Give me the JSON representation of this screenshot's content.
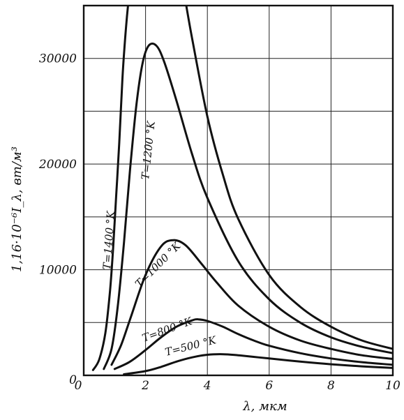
{
  "chart_data": {
    "type": "line",
    "xlabel": "λ, мкм",
    "ylabel": "1,16·10⁻⁶I_λ, вт/м³",
    "xlim": [
      0,
      10
    ],
    "ylim": [
      0,
      35000
    ],
    "grid": true,
    "x_ticks": [
      "0",
      "2",
      "4",
      "6",
      "8",
      "10"
    ],
    "y_ticks": [
      "0",
      "10000",
      "20000",
      "30000"
    ],
    "series": [
      {
        "name": "T=500 °K",
        "x": [
          1.3,
          2.0,
          2.5,
          3.0,
          3.5,
          4.0,
          4.5,
          5.0,
          5.5,
          6.0,
          7.0,
          8.0,
          9.0,
          10.0
        ],
        "y": [
          100,
          400,
          800,
          1300,
          1700,
          1950,
          2000,
          1900,
          1750,
          1600,
          1300,
          1050,
          850,
          700
        ]
      },
      {
        "name": "T=800 °K",
        "x": [
          1.0,
          1.5,
          2.0,
          2.5,
          3.0,
          3.5,
          3.7,
          4.0,
          4.5,
          5.0,
          5.5,
          6.0,
          7.0,
          8.0,
          9.0,
          10.0
        ],
        "y": [
          600,
          1300,
          2400,
          3600,
          4600,
          5200,
          5300,
          5150,
          4600,
          3900,
          3300,
          2800,
          2100,
          1600,
          1250,
          1000
        ]
      },
      {
        "name": "T=1000 °K",
        "x": [
          0.9,
          1.2,
          1.5,
          2.0,
          2.5,
          2.9,
          3.3,
          3.8,
          4.3,
          5.0,
          6.0,
          7.0,
          8.0,
          9.0,
          10.0
        ],
        "y": [
          1000,
          2800,
          5300,
          9500,
          12200,
          12800,
          12300,
          10600,
          8800,
          6600,
          4600,
          3300,
          2500,
          1900,
          1550
        ]
      },
      {
        "name": "T=1200 °K",
        "x": [
          0.65,
          0.9,
          1.1,
          1.3,
          1.5,
          1.7,
          1.9,
          2.1,
          2.35,
          2.6,
          3.0,
          3.5,
          4.0,
          5.0,
          6.0,
          7.0,
          8.0,
          9.0,
          10.0
        ],
        "y": [
          600,
          2500,
          6500,
          12500,
          19500,
          25500,
          29500,
          31200,
          31200,
          29700,
          26000,
          21000,
          16800,
          10800,
          7200,
          5000,
          3600,
          2700,
          2100
        ]
      },
      {
        "name": "T=1400 °K",
        "x": [
          0.3,
          0.5,
          0.7,
          0.85,
          0.95,
          1.05,
          1.15,
          1.25,
          1.33,
          1.4,
          1.5
        ],
        "y": [
          500,
          1500,
          4000,
          8000,
          12000,
          17000,
          22000,
          28000,
          31500,
          34000,
          37000
        ],
        "x2": [
          3.2,
          3.5,
          4.0,
          4.5,
          5.0,
          6.0,
          7.0,
          8.0,
          9.0,
          10.0
        ],
        "y2": [
          37000,
          32000,
          24500,
          19000,
          14800,
          9500,
          6500,
          4600,
          3300,
          2500
        ]
      }
    ]
  }
}
